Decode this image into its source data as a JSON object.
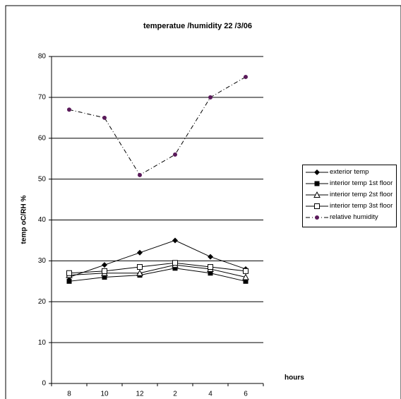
{
  "chart_data": {
    "type": "line",
    "title": "temperatue /humidity  22 /3/06",
    "y_label": "temp oC/RH %",
    "x_label": "hours",
    "categories": [
      "8",
      "10",
      "12",
      "2",
      "4",
      "6"
    ],
    "series": [
      {
        "name": "exterior temp",
        "color": "#000000",
        "marker": "diamond",
        "dash": "solid",
        "values": [
          26,
          29,
          32,
          35,
          31,
          28
        ]
      },
      {
        "name": "interior temp 1st floor",
        "color": "#000000",
        "marker": "square-filled",
        "dash": "solid",
        "values": [
          25,
          26,
          26.5,
          28.2,
          27,
          25
        ]
      },
      {
        "name": "interior temp 2st floor",
        "color": "#000000",
        "marker": "triangle-open",
        "dash": "solid",
        "values": [
          26.5,
          27,
          27,
          29,
          28,
          26
        ]
      },
      {
        "name": "interior temp 3st floor",
        "color": "#000000",
        "marker": "square-open",
        "dash": "solid",
        "values": [
          27,
          27.5,
          28.5,
          29.5,
          28.5,
          27.5
        ]
      },
      {
        "name": "relative humidity",
        "color": "#000000",
        "marker_color": "#5a1a5a",
        "marker": "circle",
        "dash": "dashdot",
        "values": [
          67,
          65,
          51,
          56,
          70,
          75
        ]
      }
    ],
    "ylim": [
      0,
      80
    ],
    "yticks": [
      0,
      10,
      20,
      30,
      40,
      50,
      60,
      70,
      80
    ],
    "grid": true
  }
}
